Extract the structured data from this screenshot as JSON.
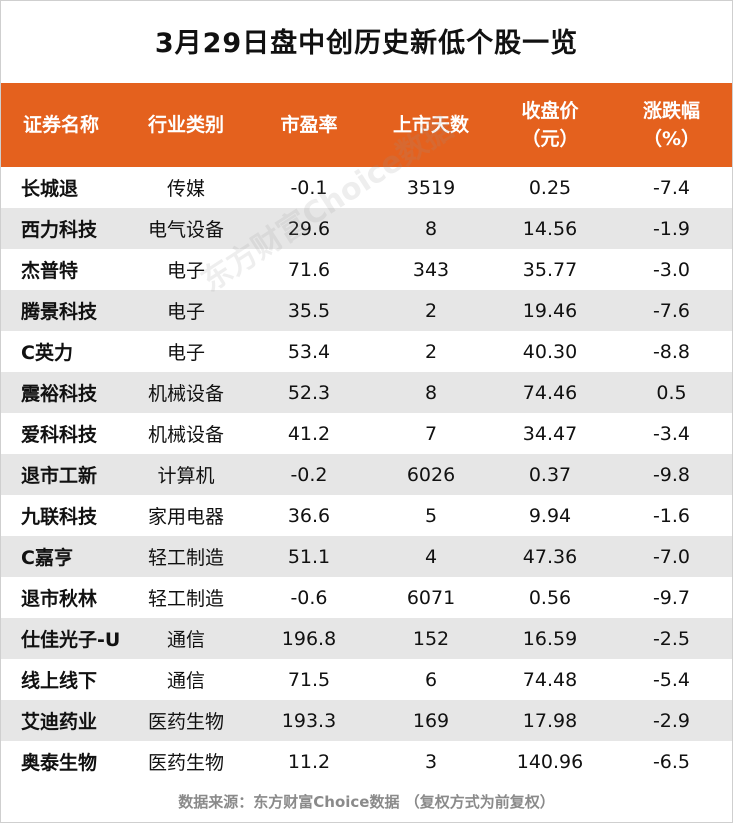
{
  "title": "3月29日盘中创历史新低个股一览",
  "columns": [
    {
      "line1": "证券名称",
      "line2": ""
    },
    {
      "line1": "行业类别",
      "line2": ""
    },
    {
      "line1": "市盈率",
      "line2": ""
    },
    {
      "line1": "上市天数",
      "line2": ""
    },
    {
      "line1": "收盘价",
      "line2": "（元）"
    },
    {
      "line1": "涨跌幅",
      "line2": "（%）"
    }
  ],
  "rows": [
    [
      "长城退",
      "传媒",
      "-0.1",
      "3519",
      "0.25",
      "-7.4"
    ],
    [
      "西力科技",
      "电气设备",
      "29.6",
      "8",
      "14.56",
      "-1.9"
    ],
    [
      "杰普特",
      "电子",
      "71.6",
      "343",
      "35.77",
      "-3.0"
    ],
    [
      "腾景科技",
      "电子",
      "35.5",
      "2",
      "19.46",
      "-7.6"
    ],
    [
      "C英力",
      "电子",
      "53.4",
      "2",
      "40.30",
      "-8.8"
    ],
    [
      "震裕科技",
      "机械设备",
      "52.3",
      "8",
      "74.46",
      "0.5"
    ],
    [
      "爱科科技",
      "机械设备",
      "41.2",
      "7",
      "34.47",
      "-3.4"
    ],
    [
      "退市工新",
      "计算机",
      "-0.2",
      "6026",
      "0.37",
      "-9.8"
    ],
    [
      "九联科技",
      "家用电器",
      "36.6",
      "5",
      "9.94",
      "-1.6"
    ],
    [
      "C嘉亨",
      "轻工制造",
      "51.1",
      "4",
      "47.36",
      "-7.0"
    ],
    [
      "退市秋林",
      "轻工制造",
      "-0.6",
      "6071",
      "0.56",
      "-9.7"
    ],
    [
      "仕佳光子-U",
      "通信",
      "196.8",
      "152",
      "16.59",
      "-2.5"
    ],
    [
      "线上线下",
      "通信",
      "71.5",
      "6",
      "74.48",
      "-5.4"
    ],
    [
      "艾迪药业",
      "医药生物",
      "193.3",
      "169",
      "17.98",
      "-2.9"
    ],
    [
      "奥泰生物",
      "医药生物",
      "11.2",
      "3",
      "140.96",
      "-6.5"
    ]
  ],
  "watermark": "东方财富Choice数据",
  "footer": "数据来源：东方财富Choice数据 （复权方式为前复权）",
  "colors": {
    "header_bg": "#e4611e",
    "stripe_bg": "#e6e6e6"
  }
}
